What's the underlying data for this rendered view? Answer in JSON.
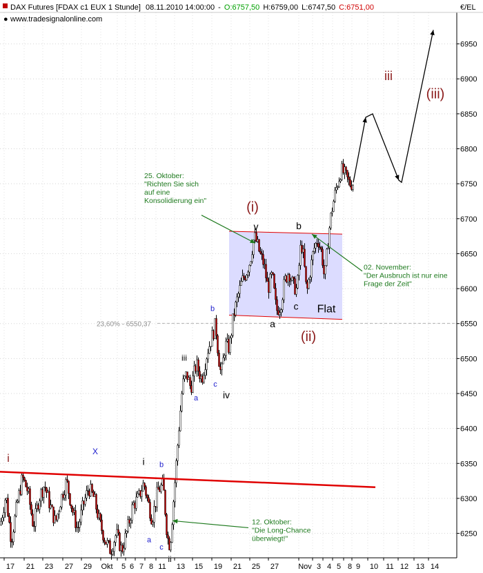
{
  "header": {
    "instrument": "DAX Futures [FDAX c1 EUX  1 Stunde]",
    "datetime": "08.11.2010 14:00:00",
    "open": "O:6757,50",
    "high": "H:6759,00",
    "low": "L:6747,50",
    "close": "C:6751,00",
    "website": "www.tradesignalonline.com",
    "currency": "€/EL"
  },
  "colors": {
    "open": "#00a000",
    "close": "#d00000",
    "wave_red": "#8b1a1a",
    "wave_blue": "#1a1acc",
    "comment_green": "#1e7a1e",
    "trendline": "#e00000",
    "flat_box": "#dcdcff"
  },
  "chart_data": {
    "type": "candlestick",
    "ylim": [
      6215,
      6995
    ],
    "y_ticks": [
      "6950",
      "6900",
      "6850",
      "6800",
      "6750",
      "6700",
      "6650",
      "6600",
      "6550",
      "6500",
      "6450",
      "6400",
      "6350",
      "6300",
      "6250"
    ],
    "x_ticks": [
      "17",
      "21",
      "23",
      "27",
      "29",
      "Okt",
      "5",
      "6",
      "7",
      "8",
      "11",
      "13",
      "15",
      "19",
      "21",
      "25",
      "27",
      "Nov",
      "3",
      "4",
      "5",
      "8",
      "9",
      "10",
      "11",
      "12",
      "13",
      "14"
    ],
    "price_path": [
      [
        0,
        6262
      ],
      [
        8,
        6305
      ],
      [
        16,
        6240
      ],
      [
        24,
        6290
      ],
      [
        32,
        6330
      ],
      [
        40,
        6310
      ],
      [
        48,
        6260
      ],
      [
        56,
        6300
      ],
      [
        64,
        6320
      ],
      [
        72,
        6290
      ],
      [
        80,
        6265
      ],
      [
        88,
        6300
      ],
      [
        96,
        6325
      ],
      [
        104,
        6285
      ],
      [
        112,
        6255
      ],
      [
        120,
        6290
      ],
      [
        128,
        6315
      ],
      [
        136,
        6300
      ],
      [
        144,
        6265
      ],
      [
        152,
        6240
      ],
      [
        160,
        6225
      ],
      [
        168,
        6250
      ],
      [
        176,
        6225
      ],
      [
        184,
        6255
      ],
      [
        192,
        6290
      ],
      [
        200,
        6300
      ],
      [
        208,
        6322
      ],
      [
        214,
        6295
      ],
      [
        220,
        6270
      ],
      [
        228,
        6310
      ],
      [
        236,
        6320
      ],
      [
        242,
        6245
      ],
      [
        246,
        6232
      ],
      [
        252,
        6310
      ],
      [
        258,
        6390
      ],
      [
        264,
        6462
      ],
      [
        270,
        6478
      ],
      [
        276,
        6458
      ],
      [
        284,
        6492
      ],
      [
        292,
        6470
      ],
      [
        300,
        6510
      ],
      [
        308,
        6535
      ],
      [
        312,
        6550
      ],
      [
        316,
        6505
      ],
      [
        320,
        6475
      ],
      [
        326,
        6520
      ],
      [
        332,
        6515
      ],
      [
        338,
        6562
      ],
      [
        344,
        6588
      ],
      [
        350,
        6610
      ],
      [
        356,
        6622
      ],
      [
        362,
        6640
      ],
      [
        368,
        6675
      ],
      [
        372,
        6665
      ],
      [
        376,
        6650
      ],
      [
        382,
        6635
      ],
      [
        388,
        6600
      ],
      [
        394,
        6620
      ],
      [
        400,
        6568
      ],
      [
        406,
        6575
      ],
      [
        412,
        6610
      ],
      [
        418,
        6625
      ],
      [
        424,
        6605
      ],
      [
        430,
        6598
      ],
      [
        436,
        6668
      ],
      [
        440,
        6640
      ],
      [
        444,
        6592
      ],
      [
        448,
        6618
      ],
      [
        454,
        6655
      ],
      [
        460,
        6672
      ],
      [
        466,
        6650
      ],
      [
        470,
        6612
      ],
      [
        476,
        6680
      ],
      [
        480,
        6710
      ],
      [
        486,
        6740
      ],
      [
        490,
        6755
      ],
      [
        494,
        6770
      ],
      [
        500,
        6762
      ],
      [
        506,
        6750
      ],
      [
        512,
        6751
      ]
    ],
    "flat_channel": {
      "upper": [
        [
          332,
          6682
        ],
        [
          496,
          6678
        ]
      ],
      "lower": [
        [
          332,
          6562
        ],
        [
          496,
          6556
        ]
      ]
    },
    "support_line": [
      [
        0,
        6338
      ],
      [
        544,
        6316
      ]
    ],
    "projection_path": [
      [
        512,
        6752
      ],
      [
        530,
        6845
      ],
      [
        540,
        6850
      ],
      [
        578,
        6755
      ],
      [
        582,
        6752
      ],
      [
        628,
        6970
      ]
    ],
    "fib_level": {
      "label": "23,60% - 6550,37",
      "value": 6550.37
    },
    "wave_labels": [
      {
        "text": "i",
        "x": 12,
        "y": 6352,
        "color": "red",
        "size": 16
      },
      {
        "text": "X",
        "x": 138,
        "y": 6363,
        "color": "blue",
        "size": 12
      },
      {
        "text": "i",
        "x": 208,
        "y": 6348,
        "color": "black",
        "size": 14
      },
      {
        "text": "b",
        "x": 234,
        "y": 6345,
        "color": "blue",
        "size": 11
      },
      {
        "text": "a",
        "x": 216,
        "y": 6237,
        "color": "blue",
        "size": 11
      },
      {
        "text": "c",
        "x": 234,
        "y": 6227,
        "color": "blue",
        "size": 11
      },
      {
        "text": "ii",
        "x": 246,
        "y": 6209,
        "color": "black",
        "size": 12
      },
      {
        "text": "iii",
        "x": 267,
        "y": 6497,
        "color": "black",
        "size": 12
      },
      {
        "text": "a",
        "x": 284,
        "y": 6440,
        "color": "blue",
        "size": 11
      },
      {
        "text": "b",
        "x": 308,
        "y": 6568,
        "color": "blue",
        "size": 11
      },
      {
        "text": "c",
        "x": 312,
        "y": 6460,
        "color": "blue",
        "size": 11
      },
      {
        "text": "iv",
        "x": 328,
        "y": 6443,
        "color": "black",
        "size": 14
      },
      {
        "text": "(i)",
        "x": 366,
        "y": 6710,
        "color": "red",
        "size": 20
      },
      {
        "text": "v",
        "x": 371,
        "y": 6684,
        "color": "black",
        "size": 14
      },
      {
        "text": "b",
        "x": 433,
        "y": 6685,
        "color": "black",
        "size": 14
      },
      {
        "text": "c",
        "x": 429,
        "y": 6570,
        "color": "black",
        "size": 14
      },
      {
        "text": "Flat",
        "x": 473,
        "y": 6566,
        "color": "black",
        "size": 16
      },
      {
        "text": "a",
        "x": 395,
        "y": 6545,
        "color": "black",
        "size": 14
      },
      {
        "text": "(ii)",
        "x": 447,
        "y": 6525,
        "color": "red",
        "size": 20
      },
      {
        "text": "iii",
        "x": 563,
        "y": 6898,
        "color": "red",
        "size": 18
      },
      {
        "text": "(iii)",
        "x": 631,
        "y": 6872,
        "color": "red",
        "size": 20
      }
    ],
    "comments": [
      {
        "lines": [
          "25. Oktober:",
          "\"Richten Sie sich",
          "auf eine",
          "Konsolidierung ein\""
        ],
        "x": 209,
        "y": 6758,
        "arrow_from": [
          292,
          6705
        ],
        "arrow_to": [
          370,
          6665
        ]
      },
      {
        "lines": [
          "02. November:",
          "\"Der Ausbruch ist nur eine",
          "Frage der Zeit\""
        ],
        "x": 527,
        "y": 6627,
        "arrow_from": [
          525,
          6625
        ],
        "arrow_to": [
          452,
          6678
        ]
      },
      {
        "lines": [
          "12. Oktober:",
          "\"Die Long-Chance",
          "überwiegt!\""
        ],
        "x": 365,
        "y": 6263,
        "arrow_from": [
          360,
          6258
        ],
        "arrow_to": [
          250,
          6268
        ]
      }
    ]
  }
}
